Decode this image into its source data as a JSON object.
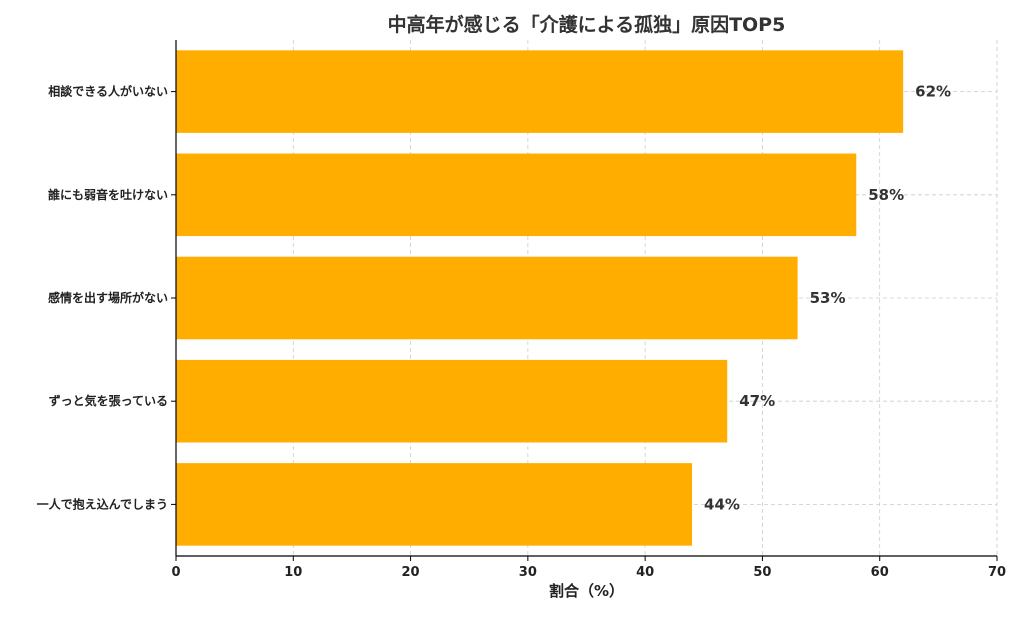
{
  "chart_data": {
    "type": "bar",
    "orientation": "horizontal",
    "title": "中高年が感じる「介護による孤独」原因TOP5",
    "xlabel": "割合（%）",
    "ylabel": "",
    "xlim": [
      0,
      70
    ],
    "x_ticks": [
      "0",
      "10",
      "20",
      "30",
      "40",
      "50",
      "60",
      "70"
    ],
    "grid": true,
    "categories": [
      "相談できる人がいない",
      "誰にも弱音を吐けない",
      "感情を出す場所がない",
      "ずっと気を張っている",
      "一人で抱え込んでしまう"
    ],
    "values": [
      62,
      58,
      53,
      47,
      44
    ],
    "value_labels": [
      "62%",
      "58%",
      "53%",
      "47%",
      "44%"
    ],
    "bar_color": "#FFAE00"
  }
}
